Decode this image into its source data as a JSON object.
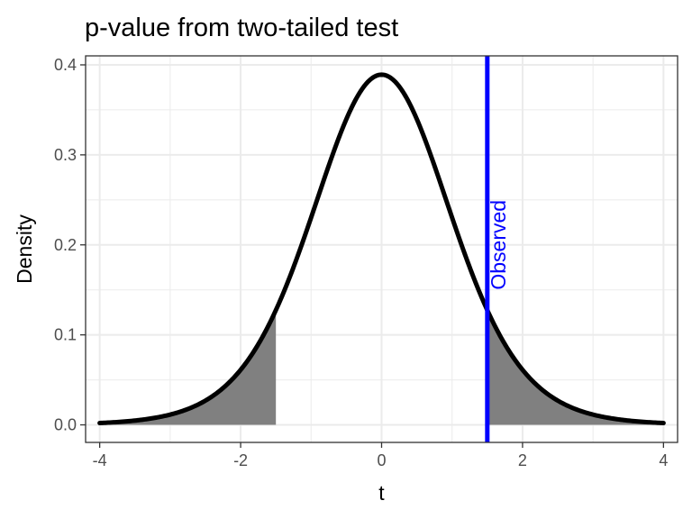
{
  "chart_data": {
    "type": "area",
    "title": "p-value from two-tailed test",
    "xlabel": "t",
    "ylabel": "Density",
    "xlim": [
      -4.2,
      4.2
    ],
    "ylim": [
      -0.0195,
      0.41
    ],
    "x_ticks": [
      -4,
      -2,
      0,
      2,
      4
    ],
    "x_tick_labels": [
      "-4",
      "-2",
      "0",
      "2",
      "4"
    ],
    "y_ticks": [
      0.0,
      0.1,
      0.2,
      0.3,
      0.4
    ],
    "y_tick_labels": [
      "0.0",
      "0.1",
      "0.2",
      "0.3",
      "0.4"
    ],
    "grid": true,
    "legend": "none",
    "series": [
      {
        "distribution": "t",
        "df": 10,
        "x_range": [
          -4,
          4
        ],
        "color": "#000000"
      }
    ],
    "shaded_regions": [
      {
        "x": [
          -4,
          -1.5
        ],
        "color": "#808080"
      },
      {
        "x": [
          1.5,
          4
        ],
        "color": "#808080"
      }
    ],
    "vline": {
      "x": 1.5,
      "color": "#0000ff"
    },
    "annotation": {
      "text": "Observed",
      "x": 1.5,
      "y": 0.2,
      "color": "#0000ff"
    }
  }
}
